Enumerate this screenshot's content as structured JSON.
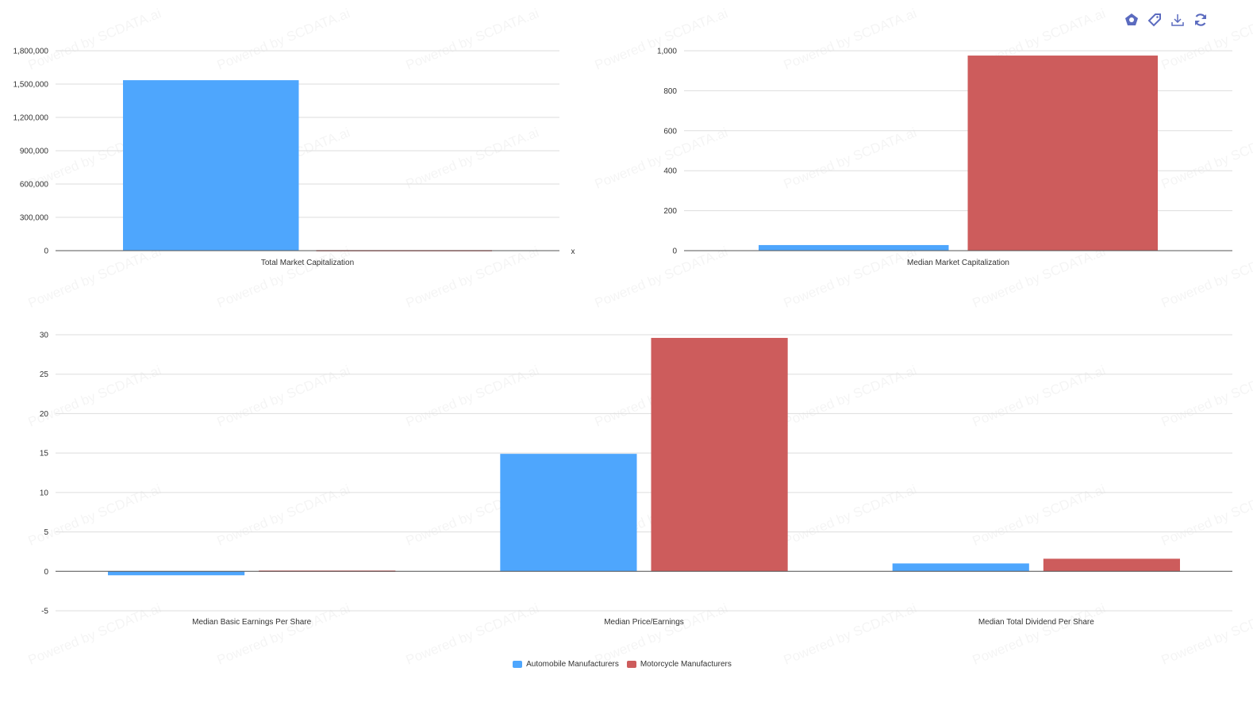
{
  "toolbar": {
    "icons": [
      "chart-type-icon",
      "tag-icon",
      "download-icon",
      "refresh-icon"
    ]
  },
  "watermark": "Powered by SCDATA.ai",
  "colors": {
    "Automobile Manufacturers": "#4ea6fd",
    "Motorcycle Manufacturers": "#cd5c5c"
  },
  "legend": [
    "Automobile Manufacturers",
    "Motorcycle Manufacturers"
  ],
  "chart_data": [
    {
      "type": "bar",
      "categories": [
        "Total Market Capitalization"
      ],
      "series": [
        {
          "name": "Automobile Manufacturers",
          "values": [
            1535000
          ]
        },
        {
          "name": "Motorcycle Manufacturers",
          "values": [
            5000
          ]
        }
      ],
      "ylim": [
        0,
        1800000
      ],
      "yticks": [
        "0",
        "300,000",
        "600,000",
        "900,000",
        "1,200,000",
        "1,500,000",
        "1,800,000"
      ],
      "xlabel": "x",
      "grid": true
    },
    {
      "type": "bar",
      "categories": [
        "Median Market Capitalization"
      ],
      "series": [
        {
          "name": "Automobile Manufacturers",
          "values": [
            28
          ]
        },
        {
          "name": "Motorcycle Manufacturers",
          "values": [
            976
          ]
        }
      ],
      "ylim": [
        0,
        1000
      ],
      "yticks": [
        "0",
        "200",
        "400",
        "600",
        "800",
        "1,000"
      ],
      "grid": true
    },
    {
      "type": "bar",
      "categories": [
        "Median Basic Earnings Per Share",
        "Median Price/Earnings",
        "Median Total Dividend Per Share"
      ],
      "series": [
        {
          "name": "Automobile Manufacturers",
          "values": [
            -0.5,
            14.9,
            1.0
          ]
        },
        {
          "name": "Motorcycle Manufacturers",
          "values": [
            0.1,
            29.6,
            1.6
          ]
        }
      ],
      "ylim": [
        -5,
        30
      ],
      "yticks": [
        "-5",
        "0",
        "5",
        "10",
        "15",
        "20",
        "25",
        "30"
      ],
      "grid": true
    }
  ]
}
